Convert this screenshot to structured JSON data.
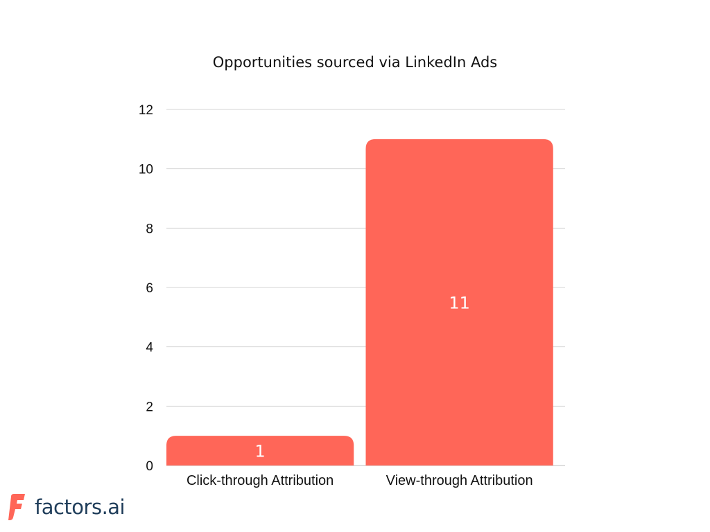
{
  "colors": {
    "bar": "#ff6658",
    "grid": "#d4d4d4",
    "logo_mark": "#ff6658",
    "logo_text": "#1f3d5a"
  },
  "logo": {
    "text": "factors.ai",
    "icon": "factors-logo-icon"
  },
  "chart_data": {
    "type": "bar",
    "title": "Opportunities sourced via LinkedIn Ads",
    "xlabel": "",
    "ylabel": "",
    "categories": [
      "Click-through Attribution",
      "View-through Attribution"
    ],
    "values": [
      1,
      11
    ],
    "data_labels": [
      "1",
      "11"
    ],
    "ylim": [
      0,
      12
    ],
    "yticks": [
      "0",
      "2",
      "4",
      "6",
      "8",
      "10",
      "12"
    ],
    "grid": true,
    "legend": "none"
  }
}
